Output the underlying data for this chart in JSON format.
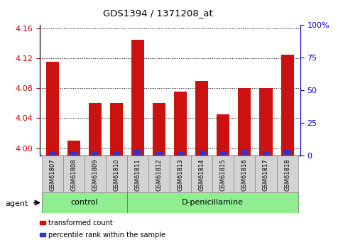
{
  "title": "GDS1394 / 1371208_at",
  "samples": [
    "GSM61807",
    "GSM61808",
    "GSM61809",
    "GSM61810",
    "GSM61811",
    "GSM61812",
    "GSM61813",
    "GSM61814",
    "GSM61815",
    "GSM61816",
    "GSM61817",
    "GSM61818"
  ],
  "transformed_count": [
    4.115,
    4.01,
    4.06,
    4.06,
    4.145,
    4.06,
    4.075,
    4.09,
    4.045,
    4.08,
    4.08,
    4.125
  ],
  "percentile_rank": [
    3.5,
    2.5,
    3.5,
    3.5,
    5.0,
    3.0,
    3.0,
    4.0,
    3.5,
    4.5,
    2.5,
    4.5
  ],
  "ylim_left": [
    3.99,
    4.165
  ],
  "ylim_right": [
    0,
    100
  ],
  "yticks_left": [
    4.0,
    4.04,
    4.08,
    4.12,
    4.16
  ],
  "yticks_right": [
    0,
    25,
    50,
    75,
    100
  ],
  "ytick_labels_right": [
    "0",
    "25",
    "50",
    "75",
    "100%"
  ],
  "groups": [
    {
      "label": "control",
      "start": 0,
      "end": 4,
      "color": "#90EE90"
    },
    {
      "label": "D-penicillamine",
      "start": 4,
      "end": 12,
      "color": "#90EE90"
    }
  ],
  "bar_color_red": "#CC1111",
  "bar_color_blue": "#3333CC",
  "bar_width": 0.6,
  "blue_bar_width": 0.3,
  "background_plot": "#FFFFFF",
  "background_label": "#D3D3D3",
  "grid_color": "black",
  "left_axis_color": "#CC0000",
  "right_axis_color": "#0000CC",
  "agent_label": "agent",
  "legend_items": [
    {
      "color": "#CC1111",
      "label": "transformed count"
    },
    {
      "color": "#3333CC",
      "label": "percentile rank within the sample"
    }
  ]
}
